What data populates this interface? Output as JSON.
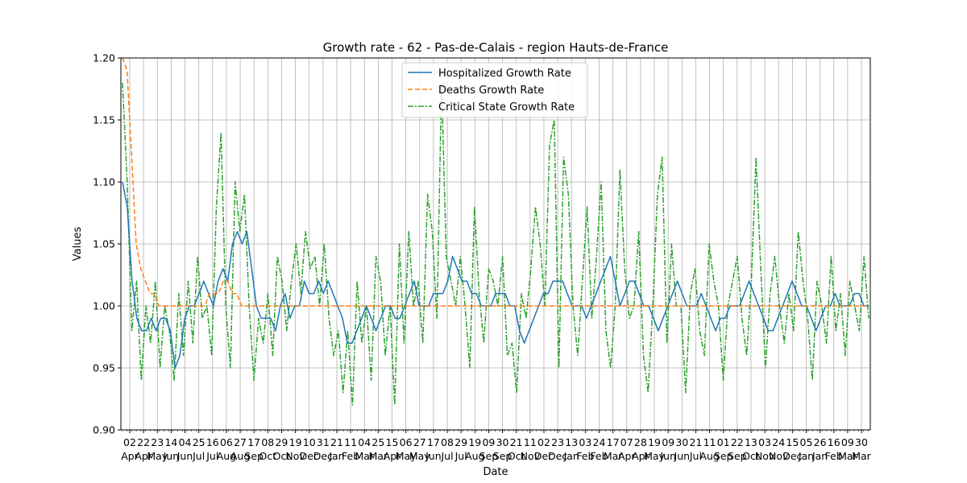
{
  "chart_data": {
    "type": "line",
    "title": "Growth rate - 62 - Pas-de-Calais - region Hauts-de-France",
    "xlabel": "Date",
    "ylabel": "Values",
    "ylim": [
      0.9,
      1.2
    ],
    "yticks": [
      "0.90",
      "0.95",
      "1.00",
      "1.05",
      "1.10",
      "1.15",
      "1.20"
    ],
    "grid": true,
    "legend_position": "top-center",
    "x_ticks": [
      {
        "day": "02",
        "month": "Apr"
      },
      {
        "day": "22",
        "month": "Apr"
      },
      {
        "day": "23",
        "month": "May"
      },
      {
        "day": "14",
        "month": "Jun"
      },
      {
        "day": "04",
        "month": "Jun"
      },
      {
        "day": "25",
        "month": "Jul"
      },
      {
        "day": "16",
        "month": "Jul"
      },
      {
        "day": "06",
        "month": "Aug"
      },
      {
        "day": "27",
        "month": "Aug"
      },
      {
        "day": "17",
        "month": "Sep"
      },
      {
        "day": "08",
        "month": "Oct"
      },
      {
        "day": "29",
        "month": "Oct"
      },
      {
        "day": "19",
        "month": "Nov"
      },
      {
        "day": "10",
        "month": "Dec"
      },
      {
        "day": "31",
        "month": "Dec"
      },
      {
        "day": "21",
        "month": "Jan"
      },
      {
        "day": "11",
        "month": "Feb"
      },
      {
        "day": "04",
        "month": "Mar"
      },
      {
        "day": "25",
        "month": "Mar"
      },
      {
        "day": "15",
        "month": "Apr"
      },
      {
        "day": "06",
        "month": "May"
      },
      {
        "day": "27",
        "month": "May"
      },
      {
        "day": "17",
        "month": "Jun"
      },
      {
        "day": "08",
        "month": "Jul"
      },
      {
        "day": "29",
        "month": "Jul"
      },
      {
        "day": "19",
        "month": "Aug"
      },
      {
        "day": "09",
        "month": "Sep"
      },
      {
        "day": "30",
        "month": "Sep"
      },
      {
        "day": "21",
        "month": "Oct"
      },
      {
        "day": "11",
        "month": "Nov"
      },
      {
        "day": "02",
        "month": "Dec"
      },
      {
        "day": "23",
        "month": "Dec"
      },
      {
        "day": "13",
        "month": "Jan"
      },
      {
        "day": "03",
        "month": "Feb"
      },
      {
        "day": "24",
        "month": "Feb"
      },
      {
        "day": "17",
        "month": "Mar"
      },
      {
        "day": "07",
        "month": "Apr"
      },
      {
        "day": "28",
        "month": "Apr"
      },
      {
        "day": "19",
        "month": "May"
      },
      {
        "day": "09",
        "month": "Jun"
      },
      {
        "day": "30",
        "month": "Jun"
      },
      {
        "day": "21",
        "month": "Jul"
      },
      {
        "day": "11",
        "month": "Aug"
      },
      {
        "day": "01",
        "month": "Sep"
      },
      {
        "day": "22",
        "month": "Sep"
      },
      {
        "day": "13",
        "month": "Oct"
      },
      {
        "day": "03",
        "month": "Nov"
      },
      {
        "day": "24",
        "month": "Nov"
      },
      {
        "day": "15",
        "month": "Dec"
      },
      {
        "day": "05",
        "month": "Jan"
      },
      {
        "day": "26",
        "month": "Jan"
      },
      {
        "day": "16",
        "month": "Feb"
      },
      {
        "day": "09",
        "month": "Mar"
      },
      {
        "day": "30",
        "month": "Mar"
      }
    ],
    "series": [
      {
        "name": "Hospitalized Growth Rate",
        "color": "#1f77b4",
        "style": "solid",
        "values": [
          1.1,
          1.08,
          1.02,
          0.99,
          0.98,
          0.98,
          0.99,
          0.98,
          0.99,
          0.99,
          0.98,
          0.95,
          0.96,
          0.99,
          1.0,
          1.0,
          1.01,
          1.02,
          1.01,
          1.0,
          1.02,
          1.03,
          1.02,
          1.05,
          1.06,
          1.05,
          1.06,
          1.03,
          1.0,
          0.99,
          0.99,
          0.99,
          0.98,
          1.0,
          1.01,
          0.99,
          1.0,
          1.0,
          1.02,
          1.01,
          1.01,
          1.02,
          1.01,
          1.02,
          1.01,
          1.0,
          0.99,
          0.97,
          0.97,
          0.98,
          0.99,
          1.0,
          0.99,
          0.98,
          0.99,
          1.0,
          1.0,
          0.99,
          0.99,
          1.0,
          1.01,
          1.02,
          1.0,
          1.0,
          1.0,
          1.01,
          1.01,
          1.01,
          1.02,
          1.04,
          1.03,
          1.02,
          1.02,
          1.01,
          1.01,
          1.0,
          1.0,
          1.0,
          1.01,
          1.01,
          1.01,
          1.0,
          1.0,
          0.98,
          0.97,
          0.98,
          0.99,
          1.0,
          1.01,
          1.01,
          1.02,
          1.02,
          1.02,
          1.01,
          1.0,
          1.0,
          1.0,
          0.99,
          1.0,
          1.01,
          1.02,
          1.03,
          1.04,
          1.02,
          1.0,
          1.01,
          1.02,
          1.02,
          1.01,
          1.0,
          1.0,
          0.99,
          0.98,
          0.99,
          1.0,
          1.01,
          1.02,
          1.01,
          1.0,
          1.0,
          1.0,
          1.01,
          1.0,
          0.99,
          0.98,
          0.99,
          0.99,
          1.0,
          1.0,
          1.0,
          1.01,
          1.02,
          1.01,
          1.0,
          0.99,
          0.98,
          0.98,
          0.99,
          1.0,
          1.01,
          1.02,
          1.01,
          1.0,
          1.0,
          0.99,
          0.98,
          0.99,
          1.0,
          1.0,
          1.01,
          1.0,
          1.0,
          1.0,
          1.01,
          1.01,
          1.0,
          1.0
        ]
      },
      {
        "name": "Deaths Growth Rate",
        "color": "#ff7f0e",
        "style": "dashed",
        "values": [
          1.2,
          1.19,
          1.12,
          1.05,
          1.03,
          1.02,
          1.01,
          1.01,
          1.0,
          1.0,
          1.0,
          1.0,
          1.0,
          1.0,
          1.0,
          1.0,
          1.0,
          1.0,
          1.0,
          1.01,
          1.01,
          1.01,
          1.02,
          1.02,
          1.01,
          1.01,
          1.0,
          1.0,
          1.0,
          1.0,
          1.0,
          1.0,
          1.0,
          1.0,
          1.0,
          1.0,
          1.0,
          1.0,
          1.0,
          1.0,
          1.0,
          1.0,
          1.0,
          1.0,
          1.0,
          1.0,
          1.0,
          1.0,
          1.0,
          1.0,
          1.0,
          1.0,
          1.0,
          1.0,
          1.0,
          1.0,
          1.0,
          1.0,
          1.0,
          1.0,
          1.0,
          1.0,
          1.0,
          1.0,
          1.0,
          1.0,
          1.0,
          1.0,
          1.0,
          1.0,
          1.0,
          1.0,
          1.0,
          1.0,
          1.0,
          1.0,
          1.0,
          1.0,
          1.0,
          1.0,
          1.0,
          1.0,
          1.0,
          1.0,
          1.0,
          1.0,
          1.0,
          1.0,
          1.0,
          1.0,
          1.0,
          1.0,
          1.0,
          1.0,
          1.0,
          1.0,
          1.0,
          1.0,
          1.0,
          1.0,
          1.0,
          1.0,
          1.0,
          1.0,
          1.0,
          1.0,
          1.0,
          1.0,
          1.0,
          1.0,
          1.0,
          1.0,
          1.0,
          1.0,
          1.0,
          1.0,
          1.0,
          1.0,
          1.0,
          1.0,
          1.0,
          1.0,
          1.0,
          1.0,
          1.0,
          1.0,
          1.0,
          1.0,
          1.0,
          1.0,
          1.0,
          1.0,
          1.0,
          1.0,
          1.0,
          1.0,
          1.0,
          1.0,
          1.0,
          1.0,
          1.0,
          1.0,
          1.0,
          1.0,
          1.0,
          1.0,
          1.0,
          1.0,
          1.0,
          1.0,
          1.0,
          1.0,
          1.0,
          1.0,
          1.0,
          1.0,
          1.0,
          1.0,
          1.0,
          1.0,
          1.0,
          1.0,
          1.0,
          1.0
        ]
      },
      {
        "name": "Critical State Growth Rate",
        "color": "#2ca02c",
        "style": "dashdot",
        "values": [
          1.18,
          1.1,
          0.98,
          1.02,
          0.94,
          1.0,
          0.97,
          1.02,
          0.95,
          1.0,
          0.98,
          0.94,
          1.01,
          0.96,
          1.02,
          0.97,
          1.04,
          0.99,
          1.0,
          0.96,
          1.08,
          1.14,
          1.0,
          0.95,
          1.1,
          1.06,
          1.09,
          1.0,
          0.94,
          0.99,
          0.97,
          1.01,
          0.96,
          1.04,
          1.02,
          0.98,
          1.02,
          1.05,
          1.01,
          1.06,
          1.03,
          1.04,
          1.0,
          1.05,
          0.99,
          0.96,
          0.98,
          0.93,
          0.98,
          0.92,
          1.02,
          0.97,
          1.0,
          0.94,
          1.04,
          1.02,
          0.96,
          1.0,
          0.92,
          1.05,
          0.97,
          1.06,
          1.0,
          1.02,
          0.97,
          1.09,
          1.06,
          0.99,
          1.18,
          1.04,
          1.02,
          1.0,
          1.04,
          1.0,
          0.95,
          1.08,
          1.01,
          0.97,
          1.03,
          1.02,
          1.0,
          1.04,
          0.96,
          0.97,
          0.93,
          1.01,
          0.99,
          1.03,
          1.08,
          1.05,
          1.0,
          1.13,
          1.15,
          0.95,
          1.12,
          1.09,
          1.0,
          0.96,
          1.02,
          1.08,
          0.99,
          1.04,
          1.1,
          0.98,
          0.95,
          1.0,
          1.11,
          1.03,
          0.99,
          1.0,
          1.06,
          0.96,
          0.93,
          1.0,
          1.09,
          1.12,
          0.97,
          1.05,
          1.0,
          1.0,
          0.93,
          1.01,
          1.03,
          0.98,
          0.96,
          1.05,
          1.02,
          1.0,
          0.94,
          1.0,
          1.02,
          1.04,
          0.99,
          0.96,
          1.02,
          1.12,
          1.03,
          0.95,
          1.01,
          1.04,
          1.0,
          0.97,
          1.01,
          0.98,
          1.06,
          1.02,
          0.99,
          0.94,
          1.02,
          1.0,
          0.97,
          1.04,
          0.98,
          1.01,
          0.96,
          1.02,
          1.0,
          0.98,
          1.04,
          0.99
        ]
      }
    ]
  }
}
